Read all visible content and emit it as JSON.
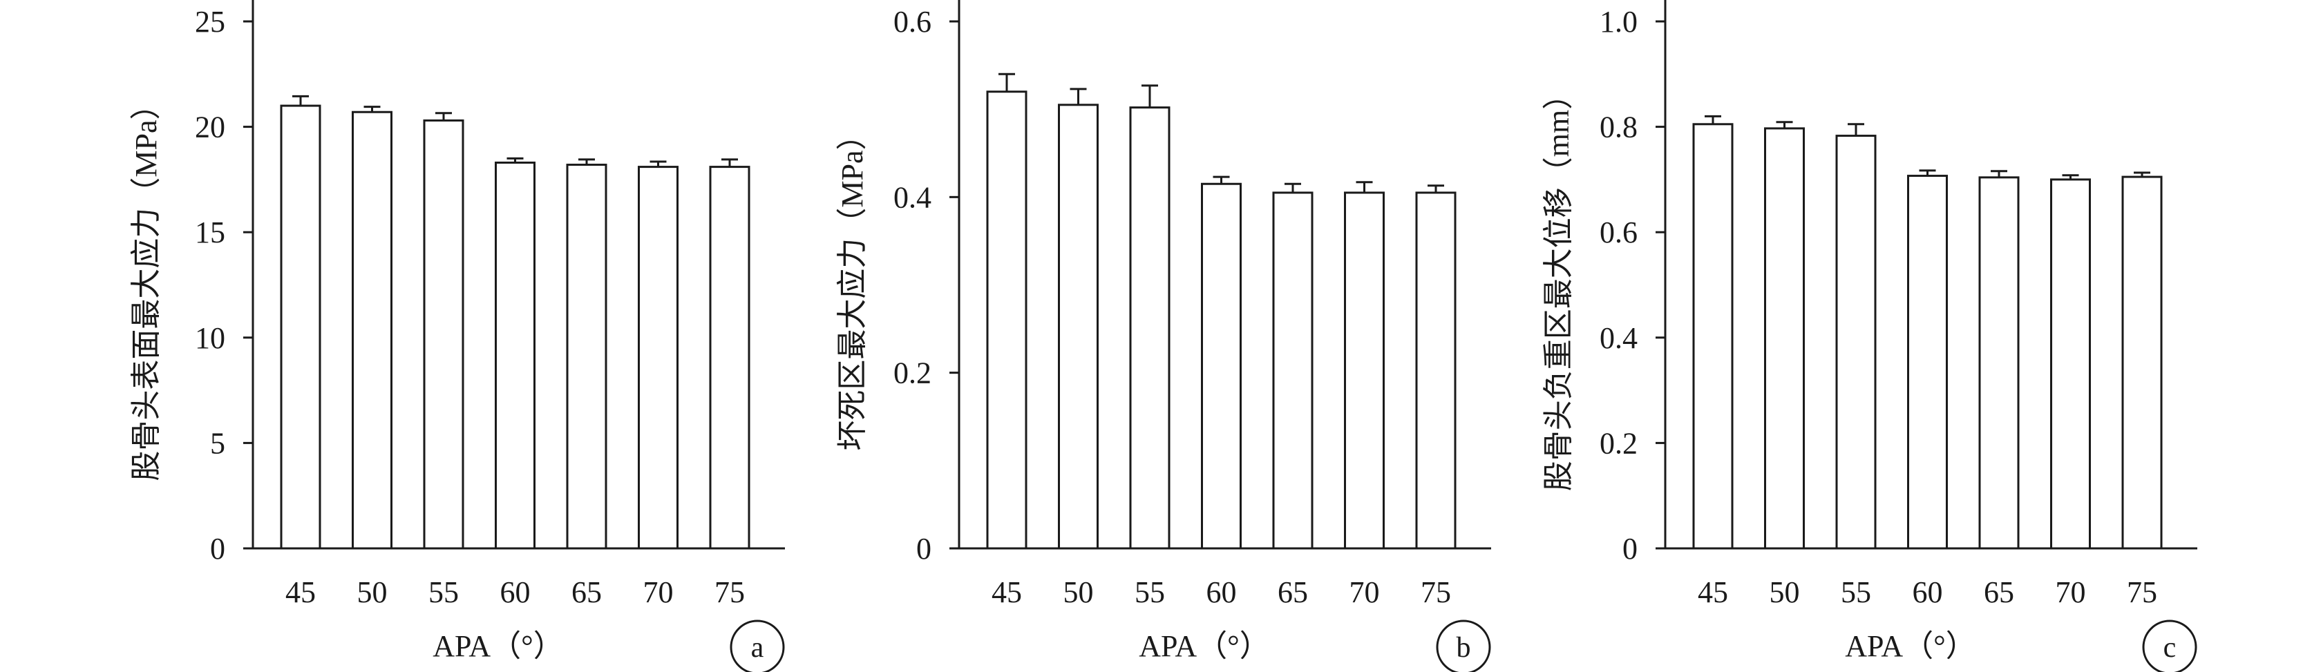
{
  "chart_data": [
    {
      "type": "bar",
      "panel_label": "a",
      "categories": [
        "45",
        "50",
        "55",
        "60",
        "65",
        "70",
        "75"
      ],
      "values": [
        21.0,
        20.7,
        20.3,
        18.3,
        18.2,
        18.1,
        18.1
      ],
      "errors": [
        0.45,
        0.25,
        0.35,
        0.2,
        0.25,
        0.25,
        0.35
      ],
      "xlabel": "APA（°）",
      "ylabel": "股骨头表面最大应力（MPa）",
      "ylim": [
        0,
        25
      ],
      "yticks": [
        0,
        5,
        10,
        15,
        20,
        25
      ],
      "ytick_labels": [
        "0",
        "5",
        "10",
        "15",
        "20",
        "25"
      ]
    },
    {
      "type": "bar",
      "panel_label": "b",
      "categories": [
        "45",
        "50",
        "55",
        "60",
        "65",
        "70",
        "75"
      ],
      "values": [
        0.52,
        0.505,
        0.502,
        0.415,
        0.405,
        0.405,
        0.405
      ],
      "errors": [
        0.02,
        0.018,
        0.025,
        0.008,
        0.01,
        0.012,
        0.008
      ],
      "xlabel": "APA（°）",
      "ylabel": "坏死区最大应力（MPa）",
      "ylim": [
        0,
        0.6
      ],
      "yticks": [
        0,
        0.2,
        0.4,
        0.6
      ],
      "ytick_labels": [
        "0",
        "0.2",
        "0.4",
        "0.6"
      ]
    },
    {
      "type": "bar",
      "panel_label": "c",
      "categories": [
        "45",
        "50",
        "55",
        "60",
        "65",
        "70",
        "75"
      ],
      "values": [
        0.805,
        0.797,
        0.783,
        0.707,
        0.704,
        0.7,
        0.705
      ],
      "errors": [
        0.015,
        0.012,
        0.022,
        0.01,
        0.012,
        0.008,
        0.008
      ],
      "xlabel": "APA（°）",
      "ylabel": "股骨头负重区最大位移（mm）",
      "ylim": [
        0,
        1.0
      ],
      "yticks": [
        0,
        0.2,
        0.4,
        0.6,
        0.8,
        1.0
      ],
      "ytick_labels": [
        "0",
        "0.2",
        "0.4",
        "0.6",
        "0.8",
        "1.0"
      ]
    }
  ]
}
